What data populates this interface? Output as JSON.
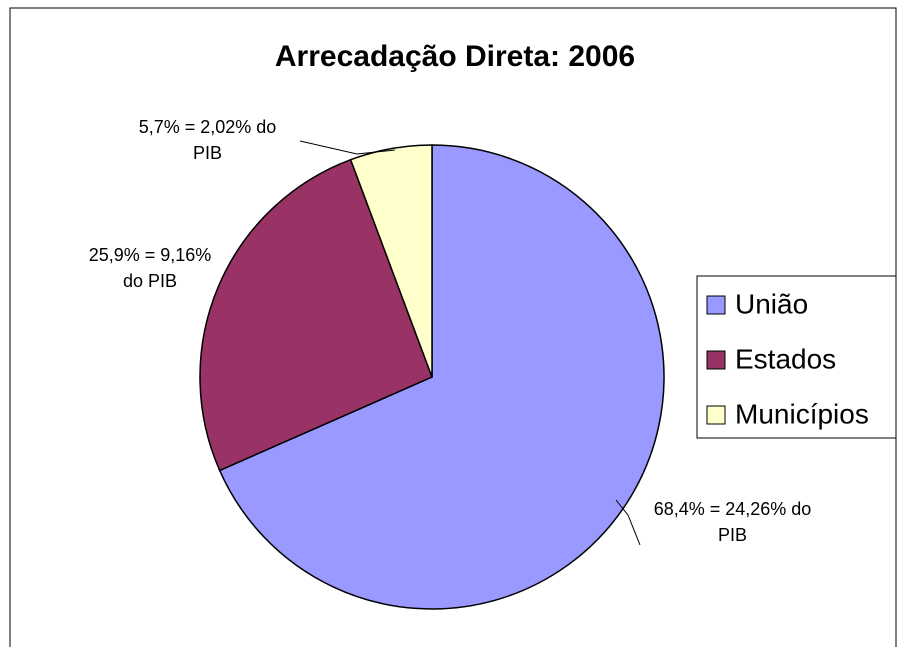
{
  "chart_data": {
    "type": "pie",
    "title": "Arrecadação Direta: 2006",
    "categories": [
      "União",
      "Estados",
      "Municípios"
    ],
    "values": [
      68.4,
      25.9,
      5.7
    ],
    "value_labels": [
      "68,4% = 24,26% do PIB",
      "25,9% = 9,16% do PIB",
      "5,7% = 2,02% do PIB"
    ],
    "colors": [
      "#9999ff",
      "#993366",
      "#ffffcc"
    ],
    "legend": "right"
  }
}
